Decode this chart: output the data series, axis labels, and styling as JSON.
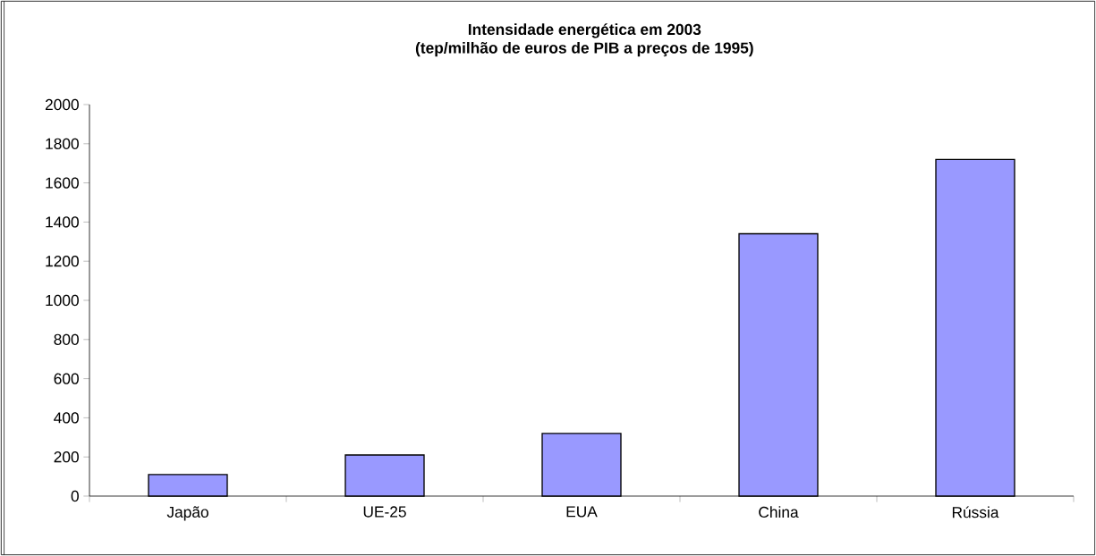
{
  "chart_data": {
    "type": "bar",
    "title": "Intensidade energética em 2003",
    "subtitle": "(tep/milhão de euros de PIB a preços de 1995)",
    "categories": [
      "Japão",
      "UE-25",
      "EUA",
      "China",
      "Rússia"
    ],
    "values": [
      110,
      210,
      320,
      1340,
      1720
    ],
    "color": "#9999ff",
    "ylim": [
      0,
      2000
    ],
    "yticks": [
      0,
      200,
      400,
      600,
      800,
      1000,
      1200,
      1400,
      1600,
      1800,
      2000
    ],
    "grid": false
  }
}
